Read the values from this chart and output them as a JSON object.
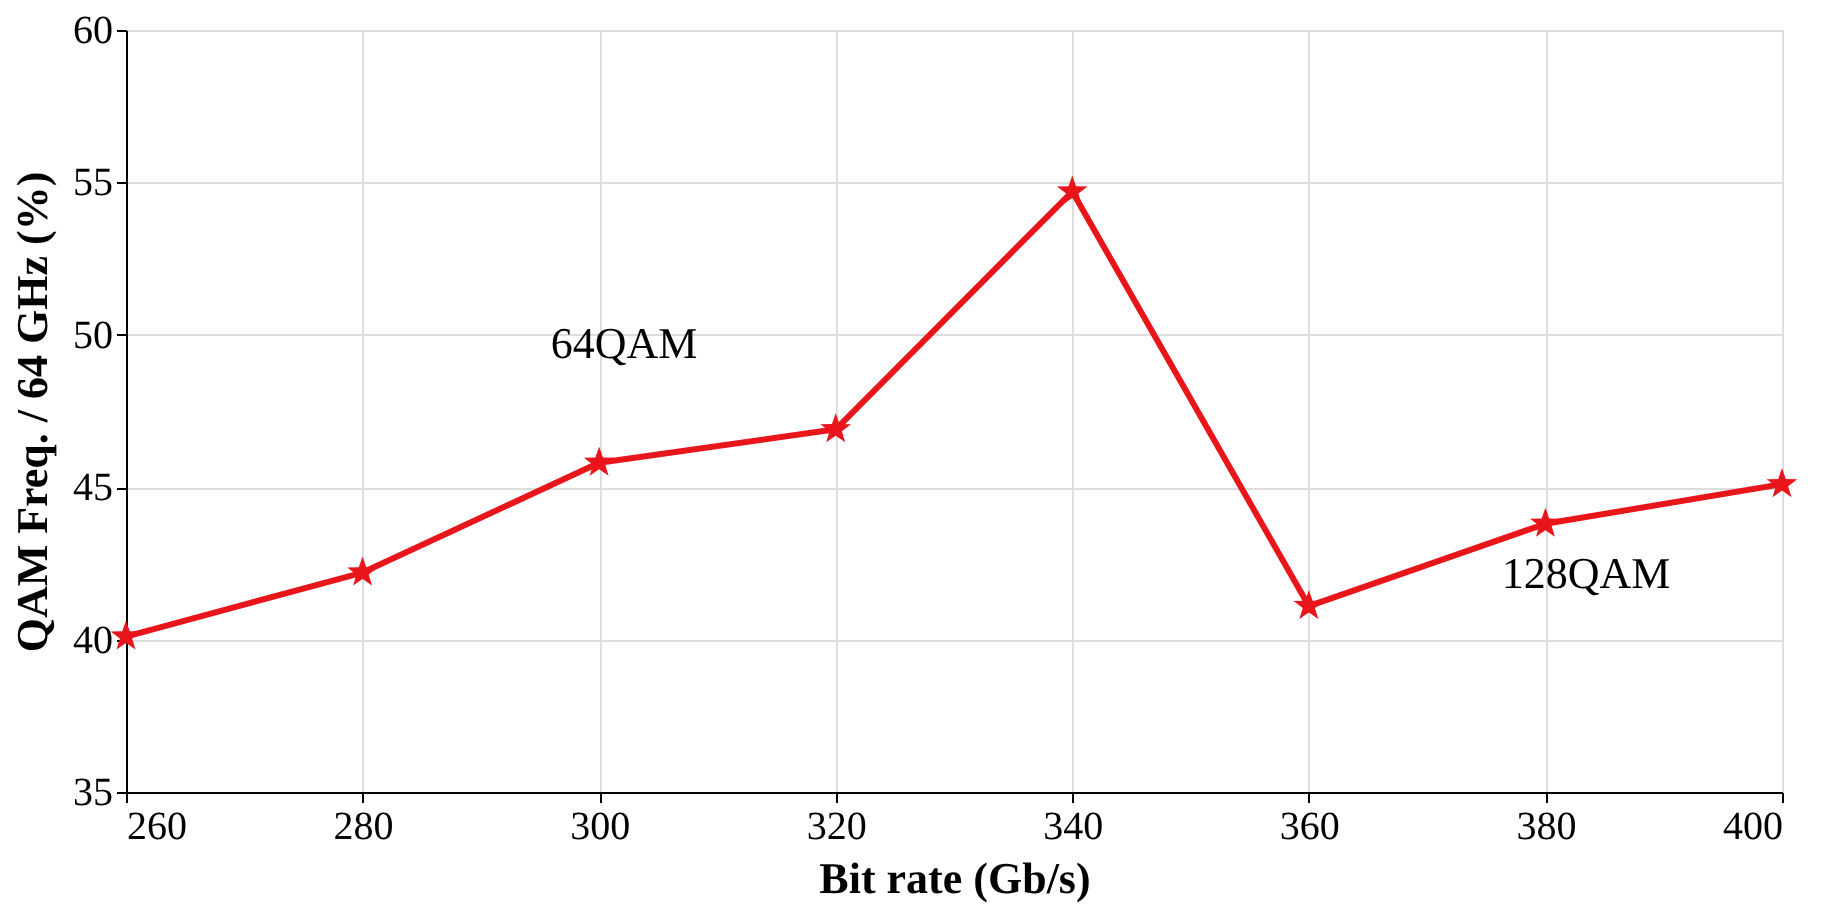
{
  "chart_data": {
    "type": "line",
    "xlabel": "Bit rate (Gb/s)",
    "ylabel": "QAM Freq.  / 64 GHz (%)",
    "x": [
      260,
      280,
      300,
      320,
      340,
      360,
      380,
      400
    ],
    "series": [
      {
        "color": "#e8151b",
        "values": [
          40.1,
          42.2,
          45.8,
          46.9,
          54.7,
          41.1,
          43.8,
          45.1
        ]
      }
    ],
    "xlim": [
      260,
      400
    ],
    "xticks": [
      260,
      280,
      300,
      320,
      340,
      360,
      380,
      400
    ],
    "ylim": [
      35,
      60
    ],
    "yticks": [
      35,
      40,
      45,
      50,
      55,
      60
    ],
    "grid": true,
    "marker": "star",
    "line_style": "solid",
    "annotations": [
      "64QAM",
      "128QAM"
    ]
  }
}
